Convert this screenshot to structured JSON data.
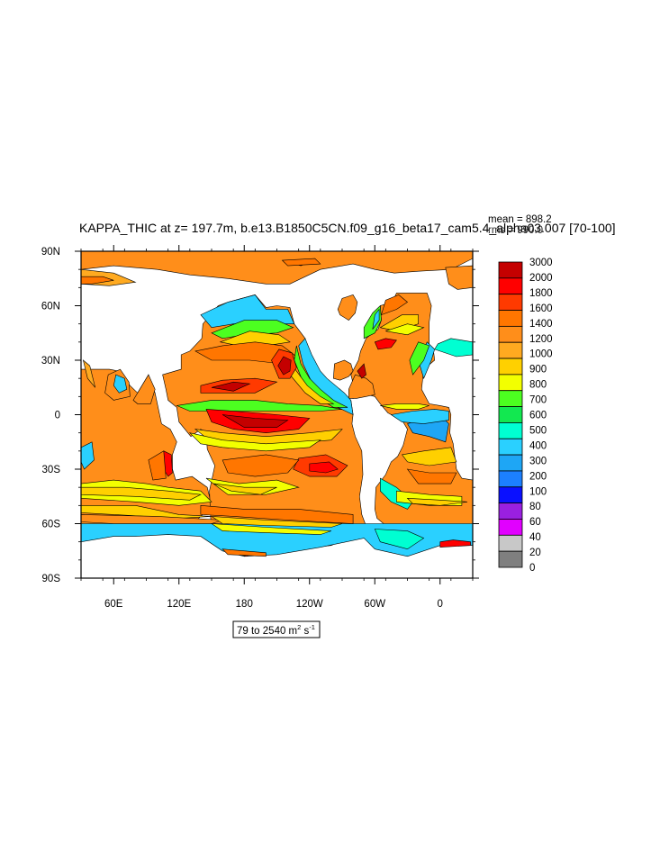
{
  "title": "KAPPA_THIC at z= 197.7m, b.e13.B1850C5CN.f09_g16_beta17_cam5.4_alpha03.007 [70-100]",
  "stats": {
    "mean_label": "mean = 898.2",
    "rms_label": "rms = 990.0"
  },
  "range_label": {
    "text": "79 to 2540 m",
    "unit_sup1": "2",
    "unit_mid": " s",
    "unit_sup2": "-1"
  },
  "colors": {
    "land": "#ffffff",
    "contour_line": "#000000",
    "palette": [
      "#7f7f7f",
      "#c8c8c8",
      "#e100ff",
      "#9a20e0",
      "#0a10ff",
      "#1c80ff",
      "#1ea6f5",
      "#2ad0ff",
      "#00ffd2",
      "#12e850",
      "#4cff20",
      "#f3ff00",
      "#ffd000",
      "#ffaa20",
      "#ff8e1a",
      "#ff7600",
      "#ff3a00",
      "#ff0000",
      "#c40000"
    ]
  },
  "chart_data": {
    "type": "heatmap",
    "title": "KAPPA_THIC at z= 197.7m, b.e13.B1850C5CN.f09_g16_beta17_cam5.4_alpha03.007 [70-100]",
    "variable": "KAPPA_THIC",
    "depth": "197.7m",
    "x_axis": {
      "ticks": [
        "60E",
        "120E",
        "180",
        "120W",
        "60W",
        "0"
      ],
      "tick_lon": [
        60,
        120,
        180,
        240,
        300,
        360
      ],
      "range": [
        30,
        390
      ]
    },
    "y_axis": {
      "ticks": [
        "90N",
        "60N",
        "30N",
        "0",
        "30S",
        "60S",
        "90S"
      ],
      "tick_lat": [
        90,
        60,
        30,
        0,
        -30,
        -60,
        -90
      ],
      "range": [
        -90,
        90
      ]
    },
    "colorbar": {
      "labels": [
        "0",
        "20",
        "40",
        "60",
        "80",
        "100",
        "200",
        "300",
        "400",
        "500",
        "600",
        "700",
        "800",
        "900",
        "1000",
        "1200",
        "1400",
        "1600",
        "1800",
        "2000",
        "3000"
      ],
      "levels": [
        0,
        20,
        40,
        60,
        80,
        100,
        200,
        300,
        400,
        500,
        600,
        700,
        800,
        900,
        1000,
        1200,
        1400,
        1600,
        1800,
        2000,
        3000
      ]
    },
    "range": {
      "min": 79,
      "max": 2540
    }
  }
}
